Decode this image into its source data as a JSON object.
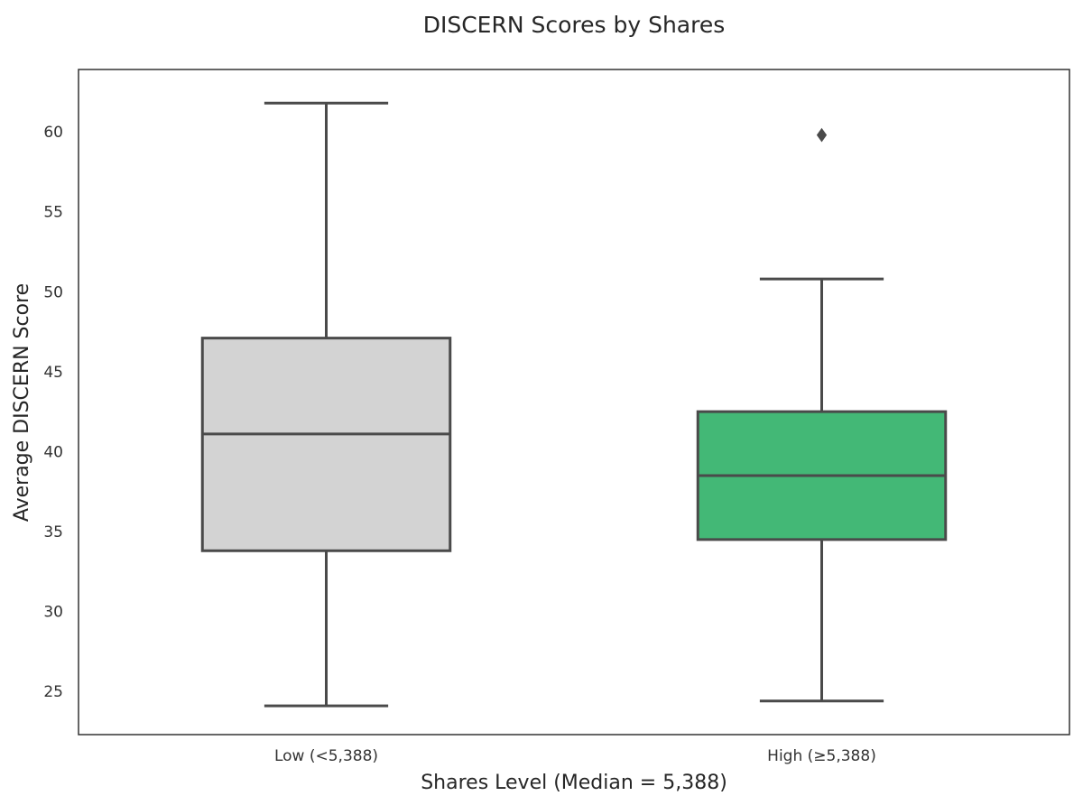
{
  "chart_data": {
    "type": "box",
    "title": "DISCERN Scores by Shares",
    "xlabel": "Shares Level (Median = 5,388)",
    "ylabel": "Average DISCERN Score",
    "ylim": [
      22.3,
      63.9
    ],
    "yticks": [
      25,
      30,
      35,
      40,
      45,
      50,
      55,
      60
    ],
    "grid": false,
    "categories": [
      "Low (<5,388)",
      "High (≥5,388)"
    ],
    "boxes": [
      {
        "category": "Low (<5,388)",
        "whisker_low": 24.1,
        "q1": 33.8,
        "median": 41.1,
        "q3": 47.1,
        "whisker_high": 61.8,
        "outliers": [],
        "color": "#d3d3d3"
      },
      {
        "category": "High (≥5,388)",
        "whisker_low": 24.4,
        "q1": 34.5,
        "median": 38.5,
        "q3": 42.5,
        "whisker_high": 50.8,
        "outliers": [
          59.8
        ],
        "color": "#43b876"
      }
    ],
    "line_color": "#4a4a4a"
  }
}
